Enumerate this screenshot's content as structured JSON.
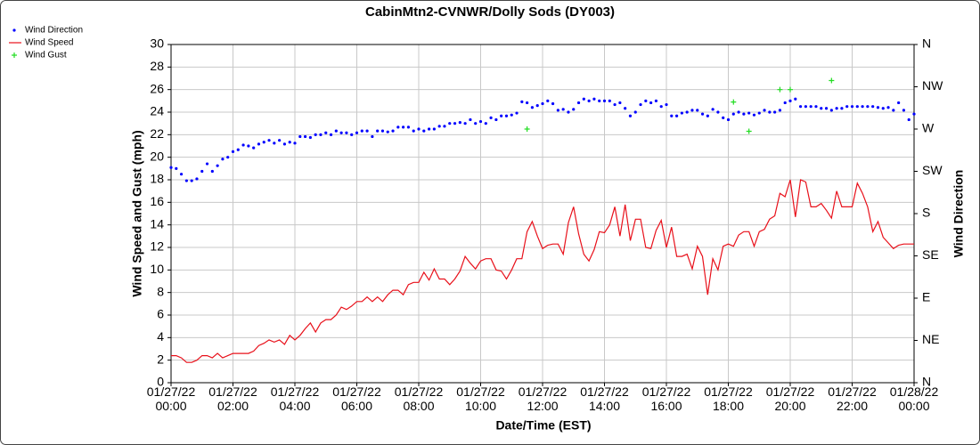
{
  "chart_data": {
    "type": "line",
    "title": "CabinMtn2-CVNWR/Dolly Sods (DY003)",
    "xlabel": "Date/Time (EST)",
    "ylabel": "Wind Speed and Gust (mph)",
    "y2label": "Wind Direction",
    "x": [
      "01/27/22 00:00",
      "01/27/22 00:10",
      "01/27/22 00:20",
      "01/27/22 00:30",
      "01/27/22 00:40",
      "01/27/22 00:50",
      "01/27/22 01:00",
      "01/27/22 01:10",
      "01/27/22 01:20",
      "01/27/22 01:30",
      "01/27/22 01:40",
      "01/27/22 01:50",
      "01/27/22 02:00",
      "01/27/22 02:10",
      "01/27/22 02:20",
      "01/27/22 02:30",
      "01/27/22 02:40",
      "01/27/22 02:50",
      "01/27/22 03:00",
      "01/27/22 03:10",
      "01/27/22 03:20",
      "01/27/22 03:30",
      "01/27/22 03:40",
      "01/27/22 03:50",
      "01/27/22 04:00",
      "01/27/22 04:10",
      "01/27/22 04:20",
      "01/27/22 04:30",
      "01/27/22 04:40",
      "01/27/22 04:50",
      "01/27/22 05:00",
      "01/27/22 05:10",
      "01/27/22 05:20",
      "01/27/22 05:30",
      "01/27/22 05:40",
      "01/27/22 05:50",
      "01/27/22 06:00",
      "01/27/22 06:10",
      "01/27/22 06:20",
      "01/27/22 06:30",
      "01/27/22 06:40",
      "01/27/22 06:50",
      "01/27/22 07:00",
      "01/27/22 07:10",
      "01/27/22 07:20",
      "01/27/22 07:30",
      "01/27/22 07:40",
      "01/27/22 07:50",
      "01/27/22 08:00",
      "01/27/22 08:10",
      "01/27/22 08:20",
      "01/27/22 08:30",
      "01/27/22 08:40",
      "01/27/22 08:50",
      "01/27/22 09:00",
      "01/27/22 09:10",
      "01/27/22 09:20",
      "01/27/22 09:30",
      "01/27/22 09:40",
      "01/27/22 09:50",
      "01/27/22 10:00",
      "01/27/22 10:10",
      "01/27/22 10:20",
      "01/27/22 10:30",
      "01/27/22 10:40",
      "01/27/22 10:50",
      "01/27/22 11:00",
      "01/27/22 11:10",
      "01/27/22 11:20",
      "01/27/22 11:30",
      "01/27/22 11:40",
      "01/27/22 11:50",
      "01/27/22 12:00",
      "01/27/22 12:10",
      "01/27/22 12:20",
      "01/27/22 12:30",
      "01/27/22 12:40",
      "01/27/22 12:50",
      "01/27/22 13:00",
      "01/27/22 13:10",
      "01/27/22 13:20",
      "01/27/22 13:30",
      "01/27/22 13:40",
      "01/27/22 13:50",
      "01/27/22 14:00",
      "01/27/22 14:10",
      "01/27/22 14:20",
      "01/27/22 14:30",
      "01/27/22 14:40",
      "01/27/22 14:50",
      "01/27/22 15:00",
      "01/27/22 15:10",
      "01/27/22 15:20",
      "01/27/22 15:30",
      "01/27/22 15:40",
      "01/27/22 15:50",
      "01/27/22 16:00",
      "01/27/22 16:10",
      "01/27/22 16:20",
      "01/27/22 16:30",
      "01/27/22 16:40",
      "01/27/22 16:50",
      "01/27/22 17:00",
      "01/27/22 17:10",
      "01/27/22 17:20",
      "01/27/22 17:30",
      "01/27/22 17:40",
      "01/27/22 17:50",
      "01/27/22 18:00",
      "01/27/22 18:10",
      "01/27/22 18:20",
      "01/27/22 18:30",
      "01/27/22 18:40",
      "01/27/22 18:50",
      "01/27/22 19:00",
      "01/27/22 19:10",
      "01/27/22 19:20",
      "01/27/22 19:30",
      "01/27/22 19:40",
      "01/27/22 19:50",
      "01/27/22 20:00",
      "01/27/22 20:10",
      "01/27/22 20:20",
      "01/27/22 20:30",
      "01/27/22 20:40",
      "01/27/22 20:50",
      "01/27/22 21:00",
      "01/27/22 21:10",
      "01/27/22 21:20",
      "01/27/22 21:30",
      "01/27/22 21:40",
      "01/27/22 21:50",
      "01/27/22 22:00",
      "01/27/22 22:10",
      "01/27/22 22:20",
      "01/27/22 22:30",
      "01/27/22 22:40",
      "01/27/22 22:50",
      "01/27/22 23:00",
      "01/27/22 23:10",
      "01/27/22 23:20",
      "01/27/22 23:30",
      "01/27/22 23:40",
      "01/27/22 23:50",
      "01/28/22 00:00"
    ],
    "series": [
      {
        "name": "Wind Direction",
        "color": "#0000ff",
        "axis": "y2",
        "marker": "dot",
        "values": [
          229,
          228,
          222,
          215,
          215,
          217,
          225,
          233,
          225,
          231,
          238,
          240,
          246,
          248,
          253,
          252,
          250,
          254,
          256,
          258,
          255,
          258,
          254,
          256,
          255,
          262,
          262,
          261,
          264,
          264,
          266,
          264,
          268,
          266,
          266,
          264,
          266,
          268,
          268,
          262,
          268,
          268,
          267,
          268,
          272,
          272,
          272,
          268,
          270,
          268,
          270,
          270,
          273,
          273,
          276,
          276,
          277,
          276,
          280,
          276,
          278,
          276,
          282,
          280,
          284,
          284,
          285,
          287,
          299,
          298,
          293,
          295,
          297,
          300,
          297,
          290,
          291,
          288,
          291,
          298,
          302,
          300,
          302,
          300,
          300,
          300,
          296,
          298,
          292,
          284,
          288,
          296,
          300,
          298,
          300,
          294,
          296,
          284,
          284,
          287,
          288,
          290,
          290,
          286,
          284,
          291,
          288,
          282,
          280,
          286,
          288,
          286,
          287,
          285,
          287,
          290,
          288,
          288,
          290,
          298,
          300,
          302,
          294,
          294,
          294,
          294,
          292,
          292,
          290,
          292,
          292,
          294,
          294,
          294,
          294,
          294,
          294,
          293,
          292,
          293,
          290,
          298,
          290,
          280,
          286
        ]
      },
      {
        "name": "Wind Speed",
        "color": "#e8101a",
        "marker": "line",
        "values": [
          2.4,
          2.4,
          2.2,
          1.8,
          1.8,
          2.0,
          2.4,
          2.4,
          2.2,
          2.6,
          2.2,
          2.4,
          2.6,
          2.6,
          2.6,
          2.6,
          2.8,
          3.3,
          3.5,
          3.8,
          3.6,
          3.8,
          3.4,
          4.2,
          3.8,
          4.2,
          4.8,
          5.3,
          4.5,
          5.3,
          5.6,
          5.6,
          6.0,
          6.7,
          6.5,
          6.8,
          7.2,
          7.2,
          7.6,
          7.2,
          7.6,
          7.2,
          7.8,
          8.2,
          8.2,
          7.8,
          8.7,
          8.9,
          8.9,
          9.8,
          9.1,
          10.1,
          9.2,
          9.2,
          8.7,
          9.2,
          9.9,
          11.2,
          10.6,
          10.1,
          10.8,
          11.0,
          11.0,
          10.0,
          9.9,
          9.2,
          10.0,
          11.0,
          11.0,
          13.4,
          14.3,
          13.0,
          11.9,
          12.2,
          12.3,
          12.3,
          11.4,
          14.2,
          15.6,
          13.2,
          11.4,
          10.8,
          11.8,
          13.4,
          13.3,
          14.0,
          15.6,
          13.0,
          15.8,
          12.6,
          14.5,
          14.5,
          12.0,
          11.9,
          13.5,
          14.4,
          12.0,
          13.8,
          11.2,
          11.2,
          11.4,
          10.1,
          12.1,
          11.2,
          7.8,
          11.0,
          10.0,
          12.1,
          12.3,
          12.1,
          13.1,
          13.4,
          13.4,
          12.1,
          13.4,
          13.6,
          14.5,
          14.8,
          16.8,
          16.5,
          18.0,
          14.7,
          18.0,
          17.8,
          15.6,
          15.6,
          15.9,
          15.3,
          14.6,
          17.0,
          15.6,
          15.6,
          15.6,
          17.7,
          16.8,
          15.6,
          13.4,
          14.3,
          12.9,
          12.4,
          11.9,
          12.2,
          12.3,
          12.3,
          12.3
        ]
      },
      {
        "name": "Wind Gust",
        "color": "#22dd22",
        "marker": "plus",
        "x": [
          "01/27/22 11:30",
          "01/27/22 18:10",
          "01/27/22 18:40",
          "01/27/22 19:40",
          "01/27/22 20:00",
          "01/27/22 21:20"
        ],
        "values": [
          22.5,
          24.9,
          22.3,
          26.0,
          26.0,
          26.8
        ]
      }
    ],
    "xlim": [
      "01/27/22 00:00",
      "01/28/22 00:00"
    ],
    "xticks": [
      "01/27/22 00:00",
      "01/27/22 02:00",
      "01/27/22 04:00",
      "01/27/22 06:00",
      "01/27/22 08:00",
      "01/27/22 10:00",
      "01/27/22 12:00",
      "01/27/22 14:00",
      "01/27/22 16:00",
      "01/27/22 18:00",
      "01/27/22 20:00",
      "01/27/22 22:00",
      "01/28/22 00:00"
    ],
    "ylim": [
      0,
      30
    ],
    "yticks": [
      0,
      2,
      4,
      6,
      8,
      10,
      12,
      14,
      16,
      18,
      20,
      22,
      24,
      26,
      28,
      30
    ],
    "y2lim": [
      0,
      360
    ],
    "y2ticks": [
      {
        "value": 0,
        "label": "N"
      },
      {
        "value": 45,
        "label": "NE"
      },
      {
        "value": 90,
        "label": "E"
      },
      {
        "value": 135,
        "label": "SE"
      },
      {
        "value": 180,
        "label": "S"
      },
      {
        "value": 225,
        "label": "SW"
      },
      {
        "value": 270,
        "label": "W"
      },
      {
        "value": 315,
        "label": "NW"
      },
      {
        "value": 360,
        "label": "N"
      }
    ],
    "grid": true,
    "legend": "top-left"
  }
}
